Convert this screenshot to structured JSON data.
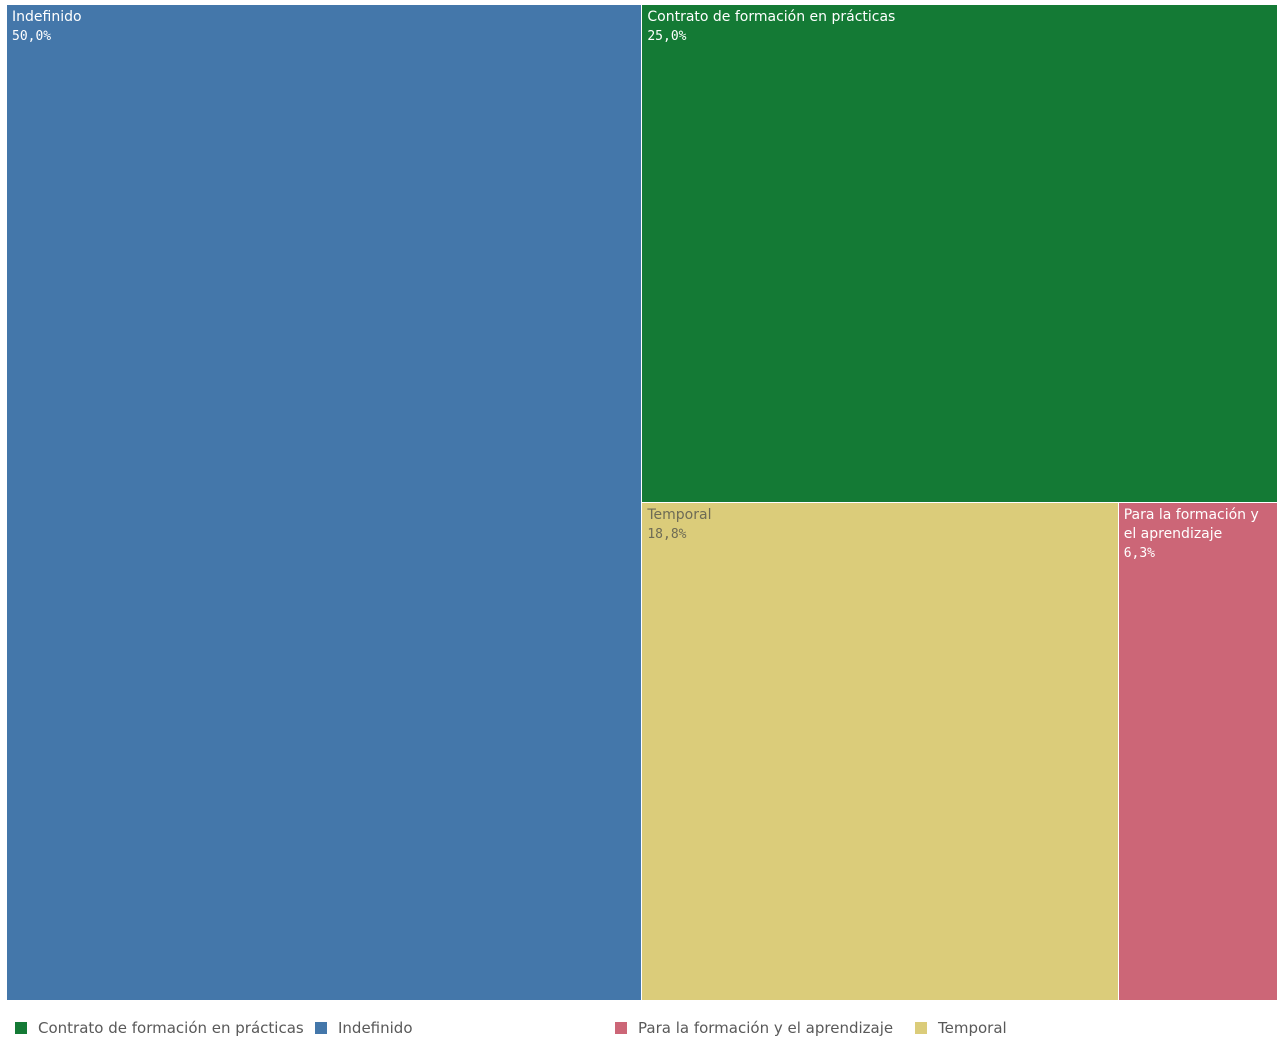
{
  "chart_data": {
    "type": "treemap",
    "categories": [
      "Indefinido",
      "Contrato de formación en prácticas",
      "Temporal",
      "Para la formación y el aprendizaje"
    ],
    "values": [
      50.0,
      25.0,
      18.8,
      6.3
    ],
    "value_labels": [
      "50,0%",
      "25,0%",
      "18,8%",
      "6,3%"
    ],
    "colors": [
      "#4477aa",
      "#147a35",
      "#dbcc7a",
      "#cc6677"
    ]
  }
}
